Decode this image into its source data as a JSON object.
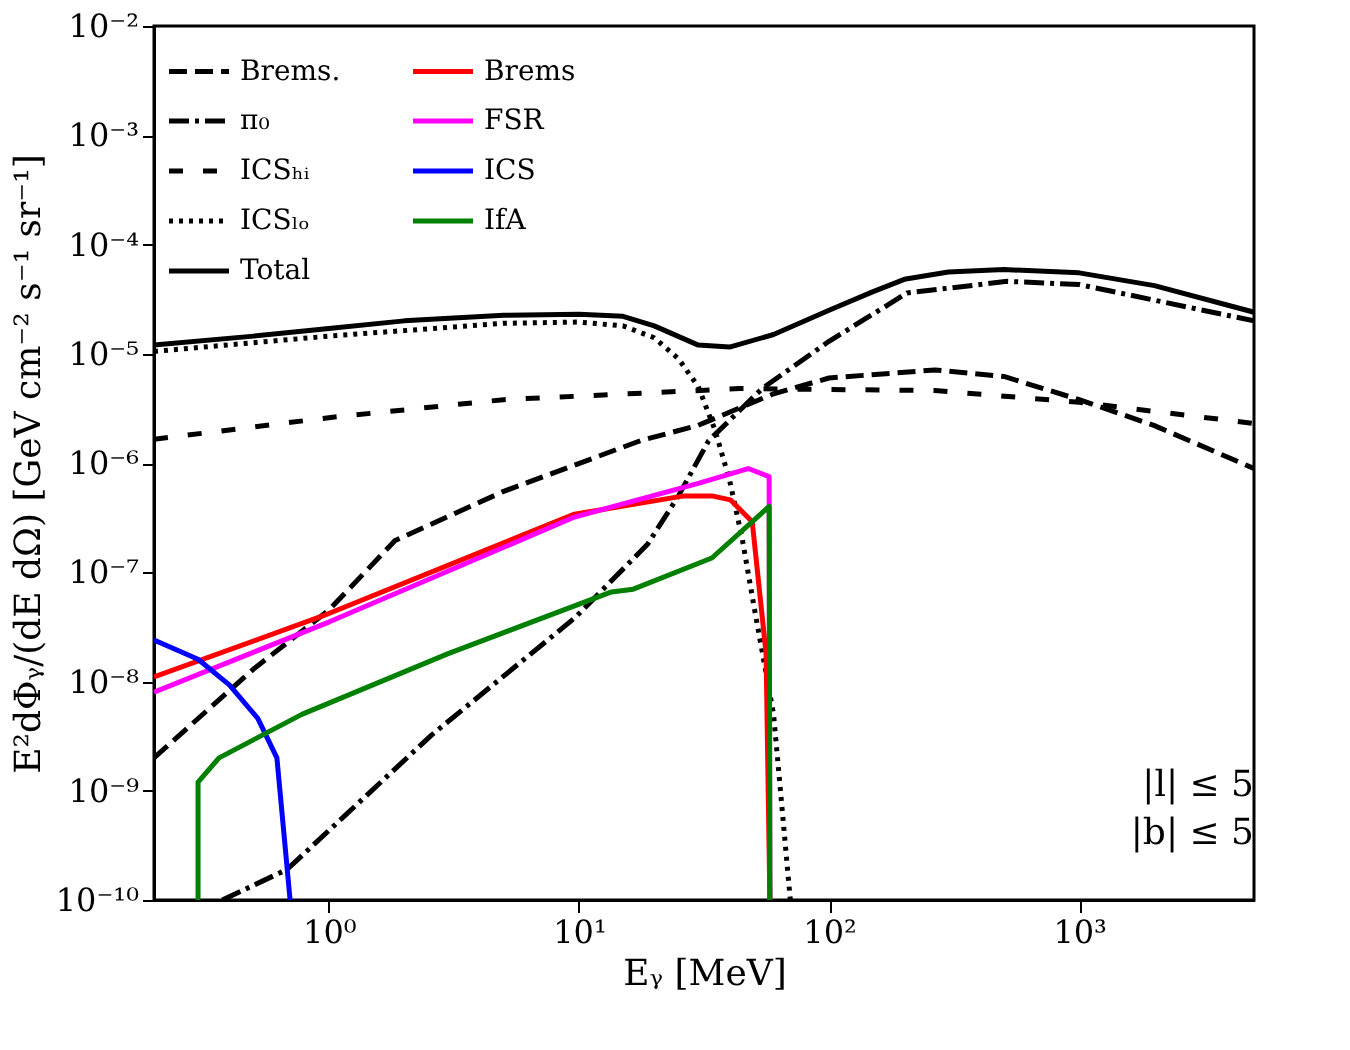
{
  "chart_data": {
    "type": "line",
    "xlabel": "Eᵧ [MeV]",
    "ylabel": "E²dΦᵧ/(dE dΩ) [GeV cm⁻² s⁻¹ sr⁻¹]",
    "log": "xy",
    "grid": false,
    "legend": "top left",
    "marker": "none",
    "xlim": [
      0.2,
      5000
    ],
    "ylim": [
      1e-10,
      0.01
    ],
    "xticks": [
      {
        "value": 1,
        "label": "10⁰"
      },
      {
        "value": 10,
        "label": "10¹"
      },
      {
        "value": 100,
        "label": "10²"
      },
      {
        "value": 1000,
        "label": "10³"
      }
    ],
    "yticks": [
      {
        "value": 1e-10,
        "label": "10⁻¹⁰"
      },
      {
        "value": 1e-09,
        "label": "10⁻⁹"
      },
      {
        "value": 1e-08,
        "label": "10⁻⁸"
      },
      {
        "value": 1e-07,
        "label": "10⁻⁷"
      },
      {
        "value": 1e-06,
        "label": "10⁻⁶"
      },
      {
        "value": 1e-05,
        "label": "10⁻⁵"
      },
      {
        "value": 0.0001,
        "label": "10⁻⁴"
      },
      {
        "value": 0.001,
        "label": "10⁻³"
      },
      {
        "value": 0.01,
        "label": "10⁻²"
      }
    ],
    "annotations": [
      "|l| ≤ 5",
      "|b| ≤ 5"
    ],
    "series": [
      {
        "name": "Brems.",
        "color": "#000000",
        "line_style": "dashed",
        "x": [
          0.2,
          0.5,
          1,
          1.84,
          5,
          17.6,
          29.8,
          60,
          100,
          265,
          500,
          1000,
          2000,
          5000
        ],
        "values": [
          2e-09,
          1.3e-08,
          4.5e-08,
          1.95e-07,
          5.5e-07,
          1.6e-06,
          2.2e-06,
          4.3e-06,
          6e-06,
          7.1e-06,
          6.2e-06,
          3.8e-06,
          2.2e-06,
          8.9e-07
        ]
      },
      {
        "name": "π₀",
        "color": "#000000",
        "line_style": "dashdot",
        "x": [
          0.375,
          0.68,
          2.56,
          9.6,
          18.8,
          25,
          33,
          54,
          100,
          205,
          516,
          1000,
          5000
        ],
        "values": [
          1e-10,
          1.9e-10,
          3.2e-09,
          3.8e-08,
          1.8e-07,
          5e-07,
          1.6e-06,
          4.8e-06,
          1.3e-05,
          3.6e-05,
          4.6e-05,
          4.3e-05,
          2e-05
        ]
      },
      {
        "name": "ICSₕᵢ",
        "color": "#000000",
        "line_style": "loosedashed",
        "x": [
          0.2,
          1,
          5,
          44,
          265,
          1000,
          5000
        ],
        "values": [
          1.65e-06,
          2.6e-06,
          3.8e-06,
          4.8e-06,
          4.6e-06,
          3.6e-06,
          2.3e-06
        ]
      },
      {
        "name": "ICSₗₒ",
        "color": "#000000",
        "line_style": "dotted",
        "x": [
          0.2,
          1,
          5,
          10,
          15,
          20,
          25,
          30,
          35,
          40,
          45,
          50,
          60,
          70
        ],
        "values": [
          1.05e-05,
          1.45e-05,
          1.9e-05,
          1.95e-05,
          1.8e-05,
          1.4e-05,
          9e-06,
          5e-06,
          2e-06,
          7e-07,
          2e-07,
          5e-08,
          5e-09,
          1e-10
        ]
      },
      {
        "name": "Total",
        "color": "#000000",
        "line_style": "solid",
        "x": [
          0.2,
          0.5,
          1,
          2,
          5,
          10,
          15,
          20,
          30,
          40,
          60,
          100,
          150,
          200,
          300,
          500,
          1000,
          2000,
          5000
        ],
        "values": [
          1.2e-05,
          1.45e-05,
          1.7e-05,
          2e-05,
          2.25e-05,
          2.3e-05,
          2.2e-05,
          1.8e-05,
          1.2e-05,
          1.15e-05,
          1.5e-05,
          2.5e-05,
          3.7e-05,
          4.8e-05,
          5.6e-05,
          5.9e-05,
          5.5e-05,
          4.2e-05,
          2.4e-05
        ]
      },
      {
        "name": "Brems",
        "color": "#ff0000",
        "line_style": "solid",
        "x": [
          0.2,
          0.95,
          9.6,
          26.3,
          34,
          40.3,
          49.3,
          56,
          58
        ],
        "values": [
          1.1e-08,
          4e-08,
          3.4e-07,
          5e-07,
          5e-07,
          4.6e-07,
          2.9e-07,
          1.8e-08,
          1e-10
        ]
      },
      {
        "name": "FSR",
        "color": "#ff00ff",
        "line_style": "solid",
        "x": [
          0.2,
          1,
          9.6,
          30,
          47.5,
          57.6,
          58
        ],
        "values": [
          8e-09,
          3.5e-08,
          3.2e-07,
          6.5e-07,
          8.9e-07,
          7.5e-07,
          1e-10
        ]
      },
      {
        "name": "ICS",
        "color": "#0000ff",
        "line_style": "solid",
        "x": [
          0.2,
          0.3,
          0.4,
          0.52,
          0.62,
          0.7
        ],
        "values": [
          2.4e-08,
          1.6e-08,
          9.3e-09,
          4.6e-09,
          2e-09,
          1e-10
        ]
      },
      {
        "name": "IfA",
        "color": "#008000",
        "line_style": "solid",
        "x": [
          0.3,
          0.3,
          0.364,
          0.78,
          3,
          13.5,
          16.5,
          34,
          57.6,
          58
        ],
        "values": [
          1e-10,
          1.2e-09,
          2e-09,
          5e-09,
          1.8e-08,
          6.6e-08,
          7e-08,
          1.35e-07,
          4e-07,
          1e-10
        ]
      }
    ]
  }
}
